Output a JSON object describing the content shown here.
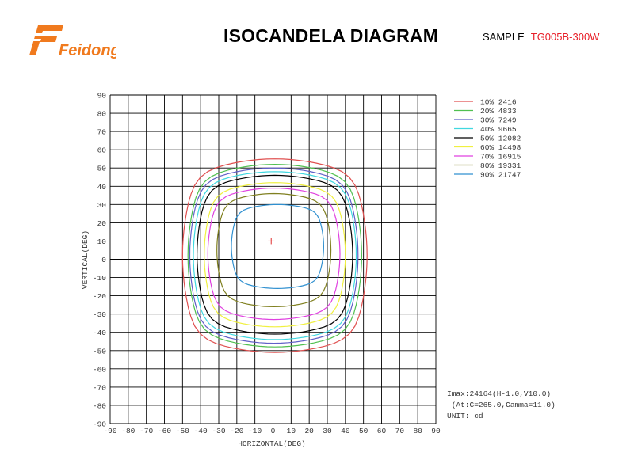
{
  "header": {
    "logo_text": "Feidong",
    "title": "ISOCANDELA DIAGRAM",
    "sample_label": "SAMPLE",
    "sample_code": "TG005B-300W",
    "sample_code_color": "#e8202a",
    "logo_color": "#f07a1e"
  },
  "chart_data": {
    "type": "contour",
    "title": "ISOCANDELA DIAGRAM",
    "xlabel": "HORIZONTAL(DEG)",
    "ylabel": "VERTICAL(DEG)",
    "xlim": [
      -90,
      90
    ],
    "ylim": [
      -90,
      90
    ],
    "x_ticks": [
      "-90",
      "-80",
      "-70",
      "-60",
      "-50",
      "-40",
      "-30",
      "-20",
      "-10",
      "0",
      "10",
      "20",
      "30",
      "40",
      "50",
      "60",
      "70",
      "80",
      "90"
    ],
    "y_ticks": [
      "90",
      "80",
      "70",
      "60",
      "50",
      "40",
      "30",
      "20",
      "10",
      "0",
      "-10",
      "-20",
      "-30",
      "-40",
      "-50",
      "-60",
      "-70",
      "-80",
      "-90"
    ],
    "grid": true,
    "legend_position": "top-right",
    "max_point": {
      "h": -1.0,
      "v": 10.0
    },
    "series": [
      {
        "name": "10% 2416",
        "color": "#e05050",
        "h_range": [
          -50,
          52
        ],
        "v_range": [
          -51,
          55
        ]
      },
      {
        "name": "20% 4833",
        "color": "#50c050",
        "h_range": [
          -47,
          49
        ],
        "v_range": [
          -48,
          52
        ]
      },
      {
        "name": "30% 7249",
        "color": "#6060c8",
        "h_range": [
          -46,
          47
        ],
        "v_range": [
          -46,
          50
        ]
      },
      {
        "name": "40% 9665",
        "color": "#40d8e0",
        "h_range": [
          -44,
          46
        ],
        "v_range": [
          -44,
          48
        ]
      },
      {
        "name": "50% 12082",
        "color": "#000000",
        "h_range": [
          -42,
          44
        ],
        "v_range": [
          -41,
          46
        ]
      },
      {
        "name": "60% 14498",
        "color": "#f0f040",
        "h_range": [
          -38,
          40
        ],
        "v_range": [
          -37,
          42
        ]
      },
      {
        "name": "70% 16915",
        "color": "#e040e0",
        "h_range": [
          -36,
          37
        ],
        "v_range": [
          -33,
          39
        ]
      },
      {
        "name": "80% 19331",
        "color": "#808020",
        "h_range": [
          -31,
          32
        ],
        "v_range": [
          -26,
          36
        ]
      },
      {
        "name": "90% 21747",
        "color": "#3090d0",
        "h_range": [
          -23,
          28
        ],
        "v_range": [
          -16,
          30
        ]
      }
    ],
    "annotations": [
      "Imax:24164(H-1.0,V10.0)",
      " (At:C=265.0,Gamma=11.0)",
      "UNIT: cd"
    ]
  }
}
